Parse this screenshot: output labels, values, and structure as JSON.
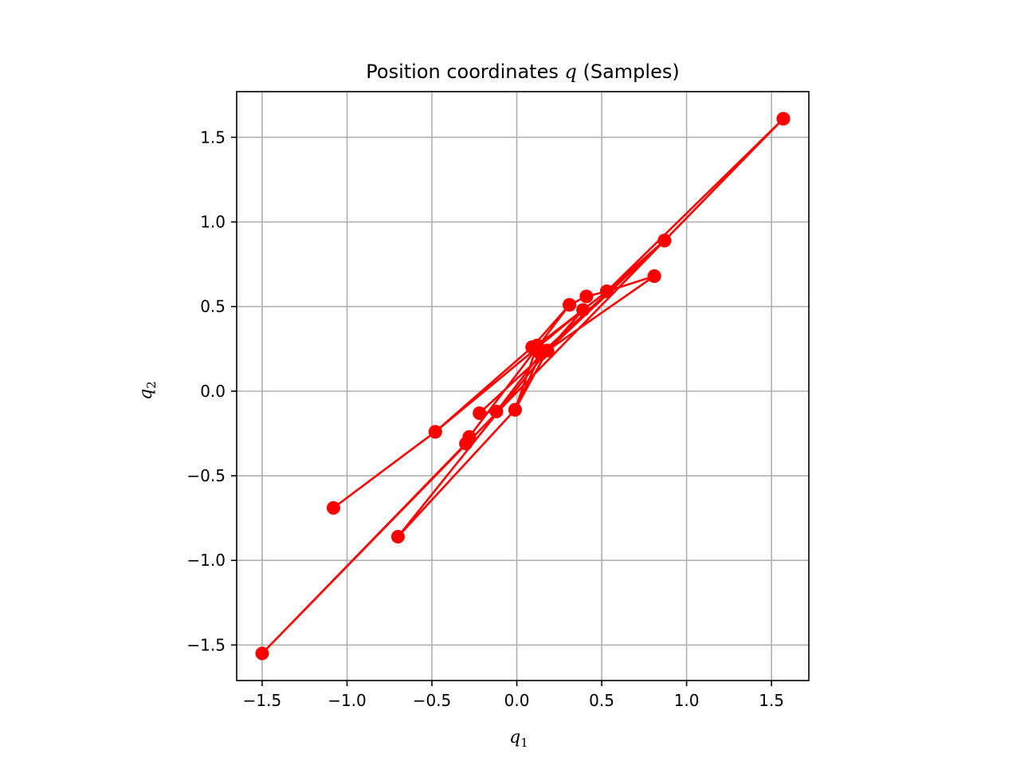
{
  "chart_data": {
    "type": "line",
    "title_prefix": "Position coordinates ",
    "title_symbol": "q",
    "title_suffix": " (Samples)",
    "xlabel": {
      "symbol": "q",
      "subscript": "1"
    },
    "ylabel": {
      "symbol": "q",
      "subscript": "2"
    },
    "xlim": [
      -1.65,
      1.72
    ],
    "ylim": [
      -1.71,
      1.77
    ],
    "xticks": [
      -1.5,
      -1.0,
      -0.5,
      0.0,
      0.5,
      1.0,
      1.5
    ],
    "yticks": [
      -1.5,
      -1.0,
      -0.5,
      0.0,
      0.5,
      1.0,
      1.5
    ],
    "xtick_labels": [
      "−1.5",
      "−1.0",
      "−0.5",
      "0.0",
      "0.5",
      "1.0",
      "1.5"
    ],
    "ytick_labels": [
      "−1.5",
      "−1.0",
      "−0.5",
      "0.0",
      "0.5",
      "1.0",
      "1.5"
    ],
    "grid": true,
    "series": [
      {
        "color": "#ff0000",
        "marker": "circle",
        "x": [
          0.81,
          0.53,
          0.41,
          0.31,
          0.09,
          -0.48,
          -1.08,
          -0.48,
          0.39,
          0.18,
          -0.01,
          0.12,
          0.53,
          0.87,
          0.18,
          -0.22,
          -0.12,
          0.14,
          0.87,
          1.57,
          -1.5,
          -0.3,
          -0.28,
          0.31,
          0.41,
          0.53,
          1.57,
          0.87,
          0.14,
          -0.01,
          -0.7,
          0.18,
          0.81
        ],
        "y": [
          0.68,
          0.59,
          0.56,
          0.51,
          0.26,
          -0.24,
          -0.69,
          -0.24,
          0.48,
          0.24,
          -0.11,
          0.27,
          0.59,
          0.89,
          0.24,
          -0.13,
          -0.12,
          0.22,
          0.89,
          1.61,
          -1.55,
          -0.31,
          -0.27,
          0.51,
          0.56,
          0.59,
          1.61,
          0.89,
          0.22,
          -0.11,
          -0.86,
          0.24,
          0.68
        ]
      }
    ]
  }
}
